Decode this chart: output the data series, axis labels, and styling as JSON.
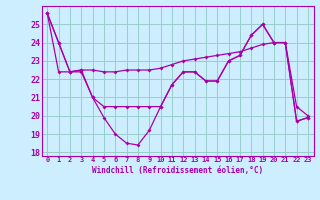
{
  "line1_x": [
    0,
    1,
    2,
    3,
    4,
    5,
    6,
    7,
    8,
    9,
    10,
    11,
    12,
    13,
    14,
    15,
    16,
    17,
    18,
    19,
    20,
    21,
    22,
    23
  ],
  "line1_y": [
    25.6,
    24.0,
    22.4,
    22.5,
    21.0,
    20.5,
    20.5,
    20.5,
    20.5,
    20.5,
    20.5,
    21.7,
    22.4,
    22.4,
    21.9,
    21.9,
    23.0,
    23.3,
    24.4,
    25.0,
    24.0,
    24.0,
    19.7,
    19.9
  ],
  "line2_x": [
    0,
    1,
    2,
    3,
    4,
    5,
    6,
    7,
    8,
    9,
    10,
    11,
    12,
    13,
    14,
    15,
    16,
    17,
    18,
    19,
    20,
    21,
    22,
    23
  ],
  "line2_y": [
    25.6,
    22.4,
    22.4,
    22.5,
    22.5,
    22.4,
    22.4,
    22.5,
    22.5,
    22.5,
    22.6,
    22.8,
    23.0,
    23.1,
    23.2,
    23.3,
    23.4,
    23.5,
    23.7,
    23.9,
    24.0,
    24.0,
    20.5,
    20.0
  ],
  "line3_x": [
    0,
    1,
    2,
    3,
    4,
    5,
    6,
    7,
    8,
    9,
    10,
    11,
    12,
    13,
    14,
    15,
    16,
    17,
    18,
    19,
    20,
    21,
    22,
    23
  ],
  "line3_y": [
    25.6,
    24.0,
    22.4,
    22.4,
    21.0,
    19.9,
    19.0,
    18.5,
    18.4,
    19.2,
    20.5,
    21.7,
    22.4,
    22.4,
    21.9,
    21.9,
    23.0,
    23.3,
    24.4,
    25.0,
    24.0,
    24.0,
    19.7,
    19.9
  ],
  "line_color": "#aa00aa",
  "bg_color": "#cceeff",
  "grid_color": "#99cccc",
  "xlabel": "Windchill (Refroidissement éolien,°C)",
  "xlim": [
    -0.5,
    23.5
  ],
  "ylim": [
    17.8,
    26.0
  ],
  "yticks": [
    18,
    19,
    20,
    21,
    22,
    23,
    24,
    25
  ],
  "xticks": [
    0,
    1,
    2,
    3,
    4,
    5,
    6,
    7,
    8,
    9,
    10,
    11,
    12,
    13,
    14,
    15,
    16,
    17,
    18,
    19,
    20,
    21,
    22,
    23
  ]
}
